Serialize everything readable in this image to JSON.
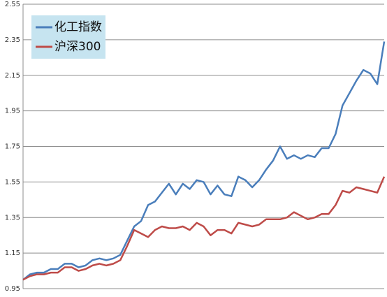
{
  "chart_data": {
    "type": "line",
    "categories": [
      null,
      null,
      null,
      null,
      null,
      null,
      null,
      null,
      null,
      null,
      null,
      null,
      null,
      null,
      null,
      null,
      null,
      null,
      null,
      null,
      null,
      null,
      null,
      null,
      null,
      null,
      null,
      null,
      null,
      null,
      null,
      null,
      null,
      null,
      null,
      null,
      null,
      null,
      null,
      null,
      null,
      null,
      null,
      null,
      null,
      null,
      null,
      null,
      null,
      null,
      null,
      null,
      null
    ],
    "series": [
      {
        "name": "化工指数",
        "color": "#4a7ebb",
        "values": [
          1.0,
          1.03,
          1.04,
          1.04,
          1.06,
          1.06,
          1.09,
          1.09,
          1.07,
          1.08,
          1.11,
          1.12,
          1.11,
          1.12,
          1.14,
          1.22,
          1.3,
          1.33,
          1.42,
          1.44,
          1.49,
          1.54,
          1.48,
          1.54,
          1.51,
          1.56,
          1.55,
          1.48,
          1.53,
          1.48,
          1.47,
          1.58,
          1.56,
          1.52,
          1.56,
          1.62,
          1.67,
          1.75,
          1.68,
          1.7,
          1.68,
          1.7,
          1.69,
          1.74,
          1.74,
          1.82,
          1.98,
          2.05,
          2.12,
          2.18,
          2.16,
          2.1,
          2.34
        ]
      },
      {
        "name": "沪深300",
        "color": "#be4b48",
        "values": [
          1.0,
          1.02,
          1.03,
          1.03,
          1.04,
          1.04,
          1.07,
          1.07,
          1.05,
          1.06,
          1.08,
          1.09,
          1.08,
          1.09,
          1.11,
          1.19,
          1.28,
          1.26,
          1.24,
          1.28,
          1.3,
          1.29,
          1.29,
          1.3,
          1.28,
          1.32,
          1.3,
          1.25,
          1.28,
          1.28,
          1.26,
          1.32,
          1.31,
          1.3,
          1.31,
          1.34,
          1.34,
          1.34,
          1.35,
          1.38,
          1.36,
          1.34,
          1.35,
          1.37,
          1.37,
          1.42,
          1.5,
          1.49,
          1.52,
          1.51,
          1.5,
          1.49,
          1.58
        ]
      }
    ],
    "ylim": [
      0.95,
      2.55
    ],
    "yticks": [
      0.95,
      1.15,
      1.35,
      1.55,
      1.75,
      1.95,
      2.15,
      2.35,
      2.55
    ],
    "grid": true,
    "legend": "top-left"
  }
}
